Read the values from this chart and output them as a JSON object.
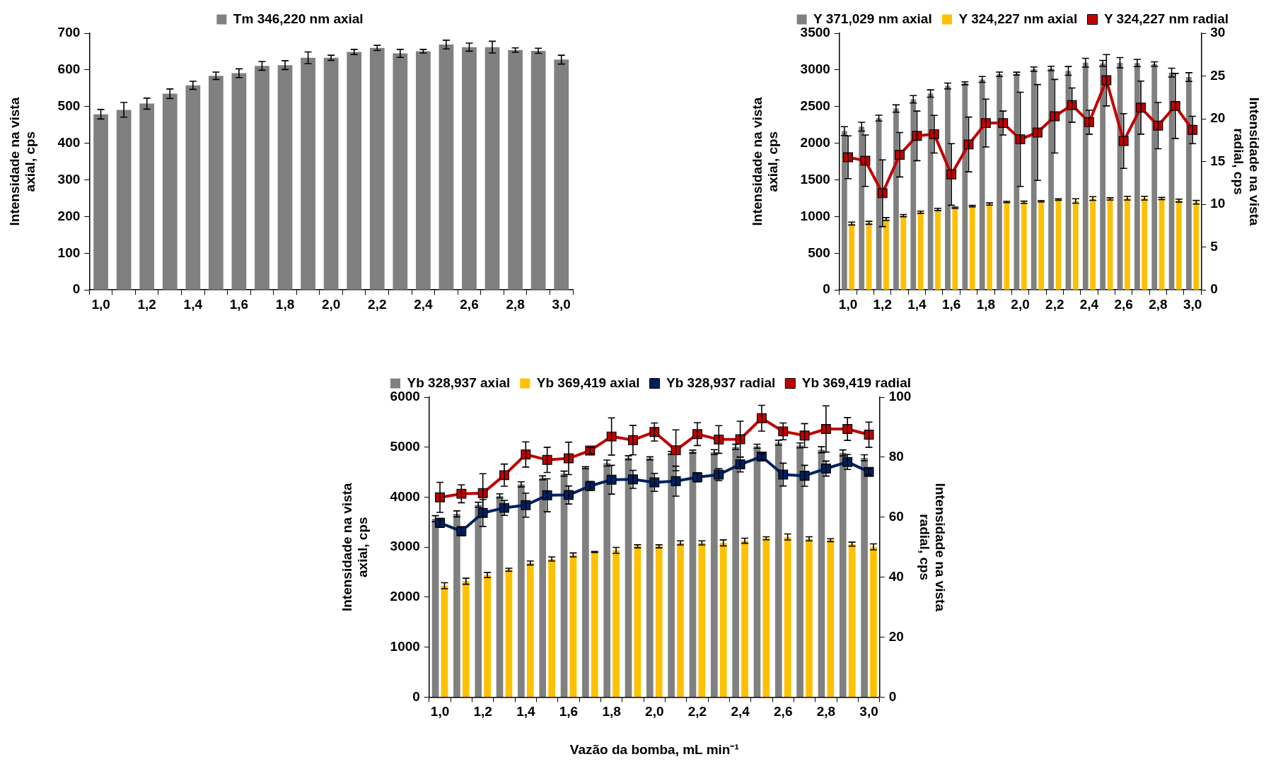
{
  "chart_data": [
    {
      "type": "bar",
      "categories": [
        "1,0",
        null,
        "1,2",
        null,
        "1,4",
        null,
        "1,6",
        null,
        "1,8",
        null,
        "2,0",
        null,
        "2,2",
        null,
        "2,4",
        null,
        "2,6",
        null,
        "2,8",
        null,
        "3,0"
      ],
      "series": [
        {
          "name": "Tm 346,220 nm axial",
          "color": "#808080",
          "values": [
            479,
            491,
            508,
            535,
            558,
            584,
            591,
            611,
            613,
            633,
            633,
            649,
            660,
            645,
            651,
            669,
            662,
            662,
            654,
            652,
            628
          ],
          "errors": [
            13,
            20,
            15,
            13,
            11,
            10,
            12,
            12,
            12,
            16,
            7,
            7,
            7,
            11,
            5,
            12,
            11,
            16,
            6,
            7,
            12
          ]
        }
      ],
      "ylabel": "Intensidade na vista\naxial, cps",
      "ylim": [
        0,
        700
      ],
      "yticks": [
        0,
        100,
        200,
        300,
        400,
        500,
        600,
        700
      ],
      "legend": "top",
      "grid": false
    },
    {
      "type": "bar",
      "categories": [
        "1,0",
        null,
        "1,2",
        null,
        "1,4",
        null,
        "1,6",
        null,
        "1,8",
        null,
        "2,0",
        null,
        "2,2",
        null,
        "2,4",
        null,
        "2,6",
        null,
        "2,8",
        null,
        "3,0"
      ],
      "series": [
        {
          "name": "Y 371,029 nm axial",
          "color": "#808080",
          "values": [
            2165,
            2226,
            2342,
            2473,
            2599,
            2678,
            2781,
            2818,
            2870,
            2940,
            2949,
            3010,
            3019,
            2986,
            3098,
            3089,
            3098,
            3094,
            3080,
            2963,
            2902
          ],
          "errors": [
            60,
            60,
            40,
            50,
            50,
            50,
            40,
            20,
            40,
            30,
            20,
            30,
            30,
            60,
            60,
            40,
            70,
            50,
            30,
            60,
            60
          ]
        },
        {
          "name": "Y 324,227 nm axial",
          "color": "#ffc000",
          "values": [
            905,
            915,
            966,
            1013,
            1059,
            1097,
            1120,
            1143,
            1171,
            1199,
            1195,
            1209,
            1232,
            1213,
            1246,
            1241,
            1251,
            1251,
            1246,
            1218,
            1195
          ],
          "errors": [
            20,
            20,
            20,
            15,
            15,
            15,
            10,
            10,
            15,
            10,
            15,
            10,
            10,
            30,
            25,
            15,
            25,
            25,
            15,
            20,
            25
          ]
        },
        {
          "name": "Y 324,227 nm radial",
          "type": "line",
          "axis": "y2",
          "marker": "square",
          "color": "#c00000",
          "values": [
            15.5,
            15.1,
            11.3,
            15.8,
            18.0,
            18.2,
            13.5,
            17.0,
            19.5,
            19.5,
            17.6,
            18.4,
            20.3,
            21.6,
            19.6,
            24.5,
            17.4,
            21.3,
            19.2,
            21.5,
            18.7
          ],
          "errors": [
            2.5,
            3.0,
            3.9,
            2.6,
            2.9,
            2.2,
            3.6,
            3.2,
            2.8,
            1.4,
            5.5,
            5.6,
            4.3,
            2.0,
            1.4,
            3.0,
            3.2,
            3.1,
            2.7,
            3.8,
            1.6
          ]
        }
      ],
      "ylabel": "Intensidade na vista\naxial, cps",
      "ylim": [
        0,
        3500
      ],
      "yticks": [
        0,
        500,
        1000,
        1500,
        2000,
        2500,
        3000,
        3500
      ],
      "y2label": "Intensidade na vista\nradial, cps",
      "y2lim": [
        0,
        30
      ],
      "y2ticks": [
        0,
        5,
        10,
        15,
        20,
        25,
        30
      ],
      "legend": "top",
      "grid": false
    },
    {
      "type": "bar",
      "categories": [
        "1,0",
        null,
        "1,2",
        null,
        "1,4",
        null,
        "1,6",
        null,
        "1,8",
        null,
        "2,0",
        null,
        "2,2",
        null,
        "2,4",
        null,
        "2,6",
        null,
        "2,8",
        null,
        "3,0"
      ],
      "series": [
        {
          "name": "Yb 328,937 axial",
          "color": "#808080",
          "values": [
            3570,
            3666,
            3849,
            4026,
            4257,
            4385,
            4471,
            4589,
            4681,
            4788,
            4777,
            4885,
            4911,
            4901,
            5008,
            5019,
            5089,
            5035,
            4949,
            4885,
            4788
          ],
          "errors": [
            60,
            60,
            50,
            40,
            50,
            40,
            50,
            20,
            60,
            40,
            30,
            30,
            30,
            50,
            50,
            40,
            50,
            50,
            60,
            60,
            60
          ]
        },
        {
          "name": "Yb 369,419 axial",
          "color": "#ffc000",
          "values": [
            2228,
            2319,
            2442,
            2549,
            2684,
            2764,
            2845,
            2904,
            2936,
            3017,
            3017,
            3086,
            3086,
            3086,
            3129,
            3178,
            3204,
            3167,
            3140,
            3060,
            3006
          ],
          "errors": [
            60,
            60,
            50,
            30,
            40,
            40,
            40,
            10,
            60,
            30,
            30,
            40,
            40,
            60,
            50,
            30,
            60,
            40,
            30,
            40,
            60
          ]
        },
        {
          "name": "Yb 328,937 radial",
          "type": "line",
          "axis": "y2",
          "marker": "square",
          "color": "#002060",
          "values": [
            58.1,
            55.3,
            61.4,
            63.1,
            64.0,
            67.3,
            67.4,
            70.4,
            72.5,
            72.6,
            71.6,
            72.0,
            73.3,
            74.2,
            77.6,
            80.2,
            74.2,
            73.8,
            76.2,
            78.4,
            75.1
          ],
          "errors": [
            1.5,
            1.5,
            4.5,
            2.5,
            4,
            5.5,
            3,
            1.5,
            4.8,
            3,
            3,
            5,
            1.5,
            2,
            2.5,
            1,
            3.8,
            3.5,
            2.5,
            2.5,
            1
          ]
        },
        {
          "name": "Yb 369,419 radial",
          "type": "line",
          "axis": "y2",
          "marker": "square",
          "color": "#c00000",
          "values": [
            66.6,
            67.8,
            68.0,
            74.0,
            80.9,
            79.1,
            79.6,
            82.2,
            86.9,
            85.7,
            88.4,
            82.3,
            87.7,
            85.9,
            86.0,
            93.0,
            88.6,
            87.2,
            89.4,
            89.4,
            87.5
          ],
          "errors": [
            5,
            3,
            6.5,
            3.7,
            4.2,
            4.2,
            5.4,
            1,
            6.2,
            4.9,
            3,
            6.8,
            3.8,
            4.6,
            6,
            4.3,
            2.8,
            4,
            7.7,
            3.8,
            4.2
          ]
        }
      ],
      "xlabel": "Vazão da bomba, mL min⁻¹",
      "ylabel": "Intensidade na vista\naxial, cps",
      "ylim": [
        0,
        6000
      ],
      "yticks": [
        0,
        1000,
        2000,
        3000,
        4000,
        5000,
        6000
      ],
      "y2label": "Intensidade na vista\nradial, cps",
      "y2lim": [
        0,
        100
      ],
      "y2ticks": [
        0,
        20,
        40,
        60,
        80,
        100
      ],
      "legend": "top",
      "grid": false
    }
  ]
}
